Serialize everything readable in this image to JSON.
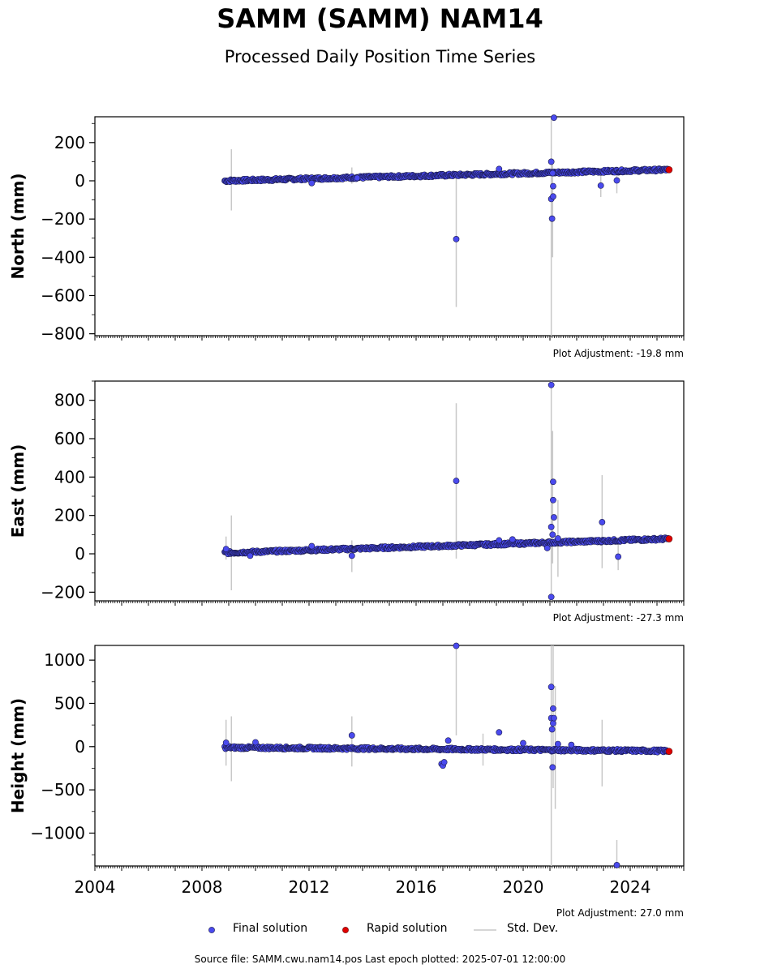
{
  "title": "SAMM (SAMM) NAM14",
  "subtitle": "Processed Daily Position Time Series",
  "source_note": "Source file: SAMM.cwu.nam14.pos  Last epoch plotted: 2025-07-01 12:00:00",
  "legend": {
    "final": "Final solution",
    "rapid": "Rapid solution",
    "std": "Std. Dev."
  },
  "colors": {
    "final": "#4a4aee",
    "final_edge": "#1a1a4a",
    "rapid": "#e00000",
    "std": "#c8c8c8"
  },
  "chart_data": [
    {
      "type": "scatter",
      "ylabel": "North (mm)",
      "note": "Plot Adjustment: -19.8 mm",
      "xlim": [
        2004,
        2026
      ],
      "ylim": [
        -810,
        335
      ],
      "yticks": [
        200,
        0,
        -200,
        -400,
        -600,
        -800
      ],
      "ytick_labels": [
        "200",
        "0",
        "−200",
        "−400",
        "−600",
        "−800"
      ],
      "trend": [
        [
          2008.85,
          0
        ],
        [
          2025.4,
          58
        ]
      ],
      "rapid": [
        [
          2025.45,
          58
        ]
      ],
      "outliers": [
        [
          2012.1,
          -12
        ],
        [
          2013.8,
          15
        ],
        [
          2017.5,
          -305
        ],
        [
          2019.1,
          62
        ],
        [
          2021.05,
          100
        ],
        [
          2021.05,
          -95
        ],
        [
          2021.08,
          -198
        ],
        [
          2021.1,
          40
        ],
        [
          2021.12,
          -28
        ],
        [
          2021.12,
          -82
        ],
        [
          2021.15,
          330
        ],
        [
          2022.9,
          -25
        ],
        [
          2023.5,
          2
        ]
      ],
      "errorbars": [
        [
          2009.1,
          -155,
          165
        ],
        [
          2013.6,
          -15,
          70
        ],
        [
          2017.5,
          -660,
          20
        ],
        [
          2021.05,
          -810,
          335
        ],
        [
          2021.1,
          -400,
          100
        ],
        [
          2022.9,
          -85,
          35
        ],
        [
          2023.5,
          -65,
          50
        ]
      ]
    },
    {
      "type": "scatter",
      "ylabel": "East (mm)",
      "note": "Plot Adjustment: -27.3 mm",
      "xlim": [
        2004,
        2026
      ],
      "ylim": [
        -245,
        900
      ],
      "yticks": [
        800,
        600,
        400,
        200,
        0,
        -200
      ],
      "ytick_labels": [
        "800",
        "600",
        "400",
        "200",
        "0",
        "−200"
      ],
      "trend": [
        [
          2008.85,
          5
        ],
        [
          2025.4,
          78
        ]
      ],
      "rapid": [
        [
          2025.45,
          78
        ]
      ],
      "outliers": [
        [
          2008.9,
          25
        ],
        [
          2009.8,
          -10
        ],
        [
          2012.1,
          40
        ],
        [
          2013.6,
          -10
        ],
        [
          2017.5,
          380
        ],
        [
          2019.1,
          70
        ],
        [
          2019.6,
          75
        ],
        [
          2020.9,
          30
        ],
        [
          2021.05,
          880
        ],
        [
          2021.05,
          140
        ],
        [
          2021.05,
          -225
        ],
        [
          2021.1,
          100
        ],
        [
          2021.12,
          375
        ],
        [
          2021.12,
          280
        ],
        [
          2021.15,
          190
        ],
        [
          2021.3,
          80
        ],
        [
          2022.95,
          165
        ],
        [
          2023.55,
          -15
        ]
      ],
      "errorbars": [
        [
          2008.9,
          -30,
          90
        ],
        [
          2009.1,
          -190,
          200
        ],
        [
          2013.6,
          -95,
          70
        ],
        [
          2017.5,
          -25,
          785
        ],
        [
          2021.05,
          -245,
          900
        ],
        [
          2021.1,
          -50,
          640
        ],
        [
          2021.3,
          -120,
          280
        ],
        [
          2022.95,
          -75,
          410
        ],
        [
          2023.55,
          -85,
          60
        ]
      ]
    },
    {
      "type": "scatter",
      "ylabel": "Height (mm)",
      "note": "Plot Adjustment: 27.0 mm",
      "xlabel": "",
      "xlim": [
        2004,
        2026
      ],
      "ylim": [
        -1380,
        1170
      ],
      "yticks": [
        1000,
        500,
        0,
        -500,
        -1000
      ],
      "ytick_labels": [
        "1000",
        "500",
        "0",
        "−500",
        "−1000"
      ],
      "xticks": [
        2004,
        2008,
        2012,
        2016,
        2020,
        2024
      ],
      "trend": [
        [
          2008.85,
          -10
        ],
        [
          2025.4,
          -50
        ]
      ],
      "rapid": [
        [
          2025.45,
          -55
        ]
      ],
      "outliers": [
        [
          2008.9,
          45
        ],
        [
          2010.0,
          50
        ],
        [
          2013.6,
          130
        ],
        [
          2016.95,
          -200
        ],
        [
          2017.0,
          -220
        ],
        [
          2017.05,
          -180
        ],
        [
          2017.2,
          70
        ],
        [
          2017.5,
          1165
        ],
        [
          2019.1,
          165
        ],
        [
          2020.0,
          40
        ],
        [
          2021.05,
          690
        ],
        [
          2021.05,
          330
        ],
        [
          2021.08,
          200
        ],
        [
          2021.1,
          -240
        ],
        [
          2021.12,
          440
        ],
        [
          2021.12,
          270
        ],
        [
          2021.15,
          330
        ],
        [
          2021.3,
          30
        ],
        [
          2021.8,
          20
        ],
        [
          2023.5,
          -1370
        ]
      ],
      "errorbars": [
        [
          2008.9,
          -220,
          310
        ],
        [
          2009.1,
          -400,
          350
        ],
        [
          2013.6,
          -230,
          350
        ],
        [
          2017.5,
          130,
          1170
        ],
        [
          2018.5,
          -220,
          150
        ],
        [
          2021.05,
          -1380,
          1170
        ],
        [
          2021.12,
          -480,
          1170
        ],
        [
          2021.2,
          -720,
          700
        ],
        [
          2022.95,
          -460,
          310
        ],
        [
          2023.5,
          -1380,
          -1080
        ]
      ]
    }
  ]
}
